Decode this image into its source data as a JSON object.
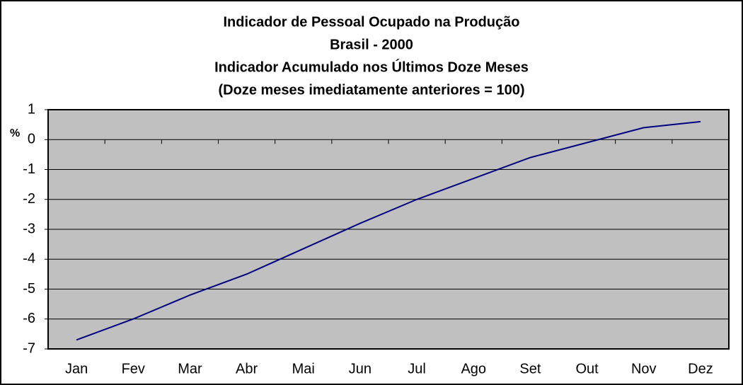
{
  "chart_data": {
    "type": "line",
    "title": [
      "Indicador de Pessoal Ocupado na Produção",
      "Brasil - 2000",
      "Indicador Acumulado nos Últimos Doze Meses",
      " (Doze meses imediatamente anteriores = 100)"
    ],
    "y_label": "%",
    "categories": [
      "Jan",
      "Fev",
      "Mar",
      "Abr",
      "Mai",
      "Jun",
      "Jul",
      "Ago",
      "Set",
      "Out",
      "Nov",
      "Dez"
    ],
    "series": [
      {
        "name": "Indicador",
        "color": "#000080",
        "values": [
          -6.7,
          -6.0,
          -5.2,
          -4.5,
          -3.65,
          -2.8,
          -2.0,
          -1.3,
          -0.6,
          -0.1,
          0.4,
          0.6
        ]
      }
    ],
    "ylim": [
      -7,
      1
    ],
    "yticks": [
      -7,
      -6,
      -5,
      -4,
      -3,
      -2,
      -1,
      0,
      1
    ],
    "grid": true,
    "background": "#c0c0c0"
  }
}
